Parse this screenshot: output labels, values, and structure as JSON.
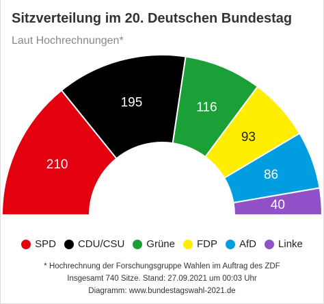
{
  "title": "Sitzverteilung im 20. Deutschen Bundestag",
  "subtitle": "Laut Hochrechnungen*",
  "chart_data": {
    "type": "pie",
    "variant": "half-donut (parliament)",
    "title": "Sitzverteilung im 20. Deutschen Bundestag",
    "subtitle": "Laut Hochrechnungen*",
    "categories": [
      "SPD",
      "CDU/CSU",
      "Grüne",
      "FDP",
      "AfD",
      "Linke"
    ],
    "values": [
      210,
      195,
      116,
      93,
      86,
      40
    ],
    "colors": [
      "#e3000f",
      "#000000",
      "#1aa037",
      "#ffee00",
      "#009ee0",
      "#9050c8"
    ],
    "label_colors": [
      "#ffffff",
      "#ffffff",
      "#ffffff",
      "#222222",
      "#ffffff",
      "#ffffff"
    ],
    "legend_position": "bottom"
  },
  "footer": {
    "line1": "* Hochrechnung der Forschungsgruppe Wahlen im Auftrag des ZDF",
    "line2": "Insgesamt 740 Sitze. Stand: 27.09.2021 um 00:03 Uhr",
    "line3": "Diagramm: www.bundestagswahl-2021.de"
  }
}
